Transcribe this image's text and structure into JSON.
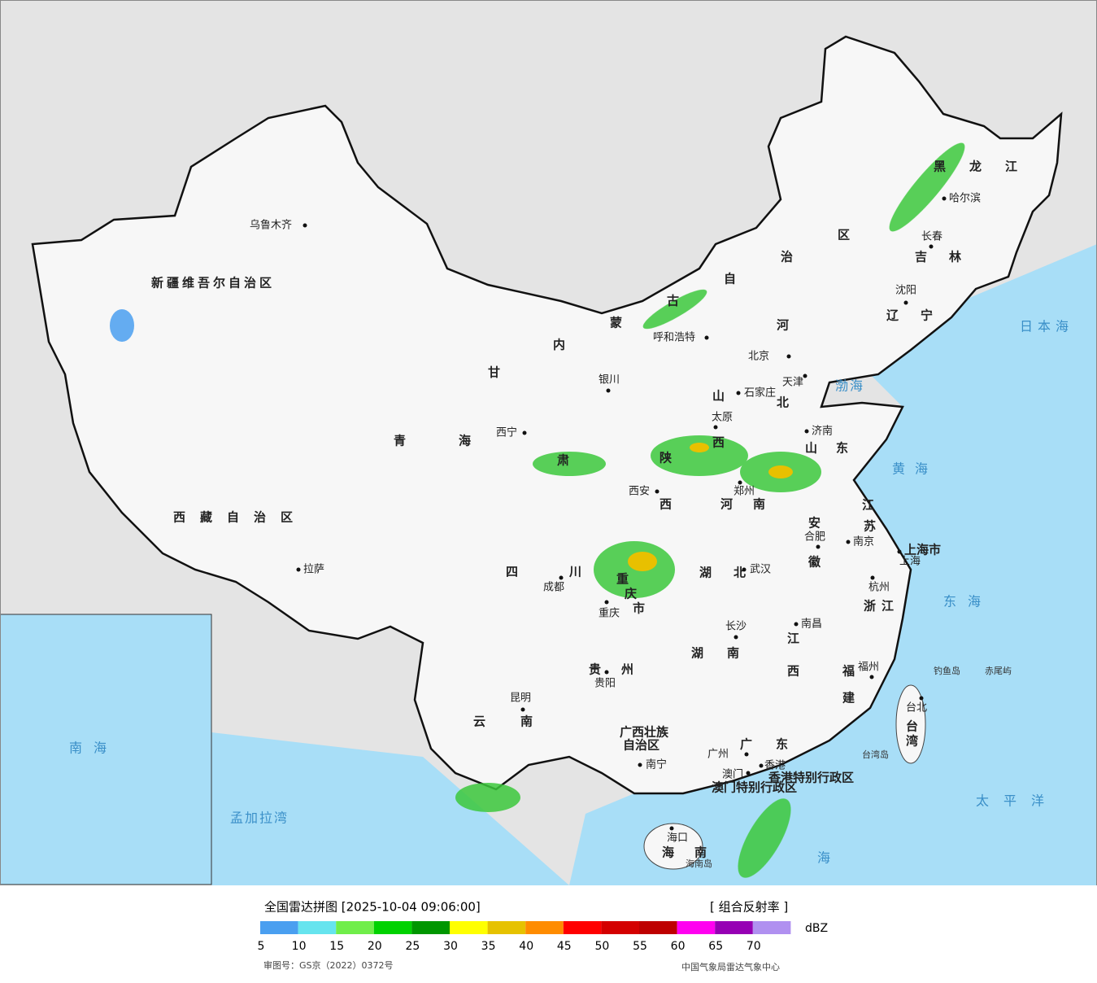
{
  "legend": {
    "title": "全国雷达拼图 [2025-10-04 09:06:00]",
    "product": "[ 组合反射率 ]",
    "unit": "dBZ",
    "ticks": [
      5,
      10,
      15,
      20,
      25,
      30,
      35,
      40,
      45,
      50,
      55,
      60,
      65,
      70
    ],
    "colors": [
      "#4a9ff0",
      "#66e4ee",
      "#70ee4a",
      "#00d200",
      "#009600",
      "#ffff00",
      "#e6c200",
      "#ff8c00",
      "#ff0000",
      "#d40000",
      "#be0000",
      "#ff00f0",
      "#9600b4",
      "#b090f0"
    ]
  },
  "footer": {
    "approval": "审图号：GS京（2022）0372号",
    "agency": "中国气象局雷达气象中心"
  },
  "map": {
    "provinces": [
      "新疆维吾尔自治区",
      "西藏自治区",
      "青海",
      "甘肃",
      "内蒙古自治区",
      "黑龙江",
      "吉林",
      "辽宁",
      "河北",
      "山西",
      "山东",
      "河南",
      "陕西",
      "四川",
      "重庆市",
      "湖北",
      "湖南",
      "江西",
      "安徽",
      "江苏",
      "浙江",
      "福建",
      "贵州",
      "云南",
      "广西壮族",
      "自治区",
      "广东",
      "海南",
      "台湾",
      "上海市",
      "香港特别行政区",
      "澳门特别行政区"
    ],
    "cities": [
      "乌鲁木齐",
      "拉萨",
      "西宁",
      "银川",
      "呼和浩特",
      "北京",
      "天津",
      "石家庄",
      "太原",
      "济南",
      "郑州",
      "西安",
      "成都",
      "重庆",
      "武汉",
      "合肥",
      "南京",
      "上海",
      "杭州",
      "南昌",
      "长沙",
      "贵阳",
      "昆明",
      "南宁",
      "广州",
      "澳门",
      "香港",
      "福州",
      "台北",
      "海口",
      "哈尔滨",
      "长春",
      "沈阳"
    ],
    "seas": [
      "渤海",
      "黄海",
      "东海",
      "日本海",
      "太平洋",
      "海",
      "孟加拉湾",
      "南海"
    ],
    "islands": [
      "钓鱼岛",
      "赤尾屿",
      "台湾岛",
      "海南岛"
    ]
  }
}
